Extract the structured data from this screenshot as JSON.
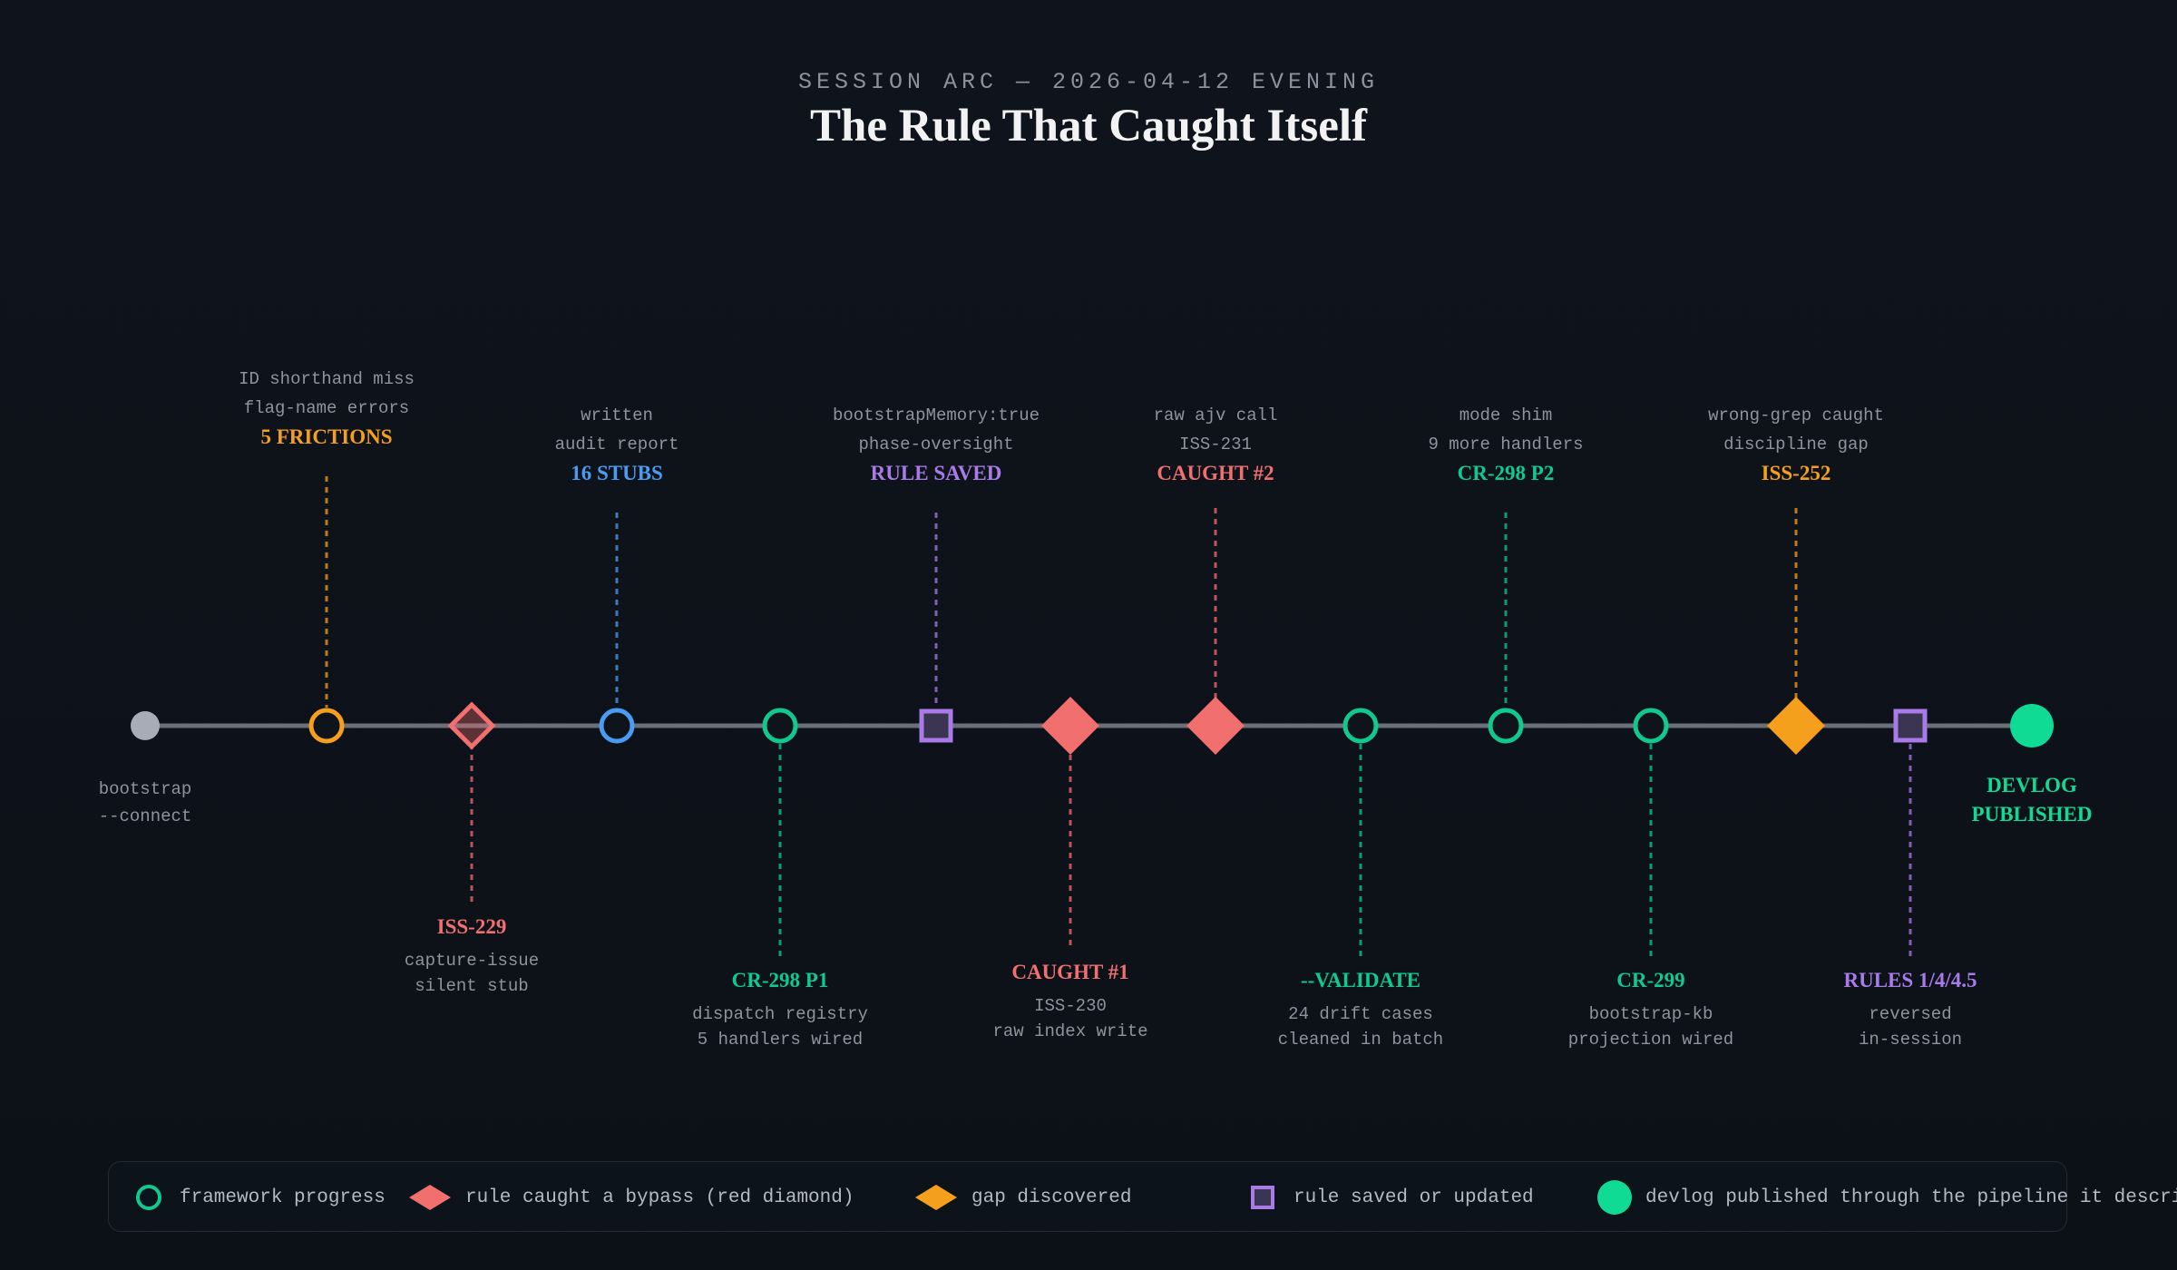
{
  "header": {
    "kicker": "SESSION ARC — 2026-04-12 EVENING",
    "title": "The Rule That Caught Itself"
  },
  "colors": {
    "axis": "#6b7078",
    "progress": "#10c98f",
    "bypass": "#f16f6f",
    "gap": "#f4a01c",
    "rule": "#a87be8",
    "stubs": "#4a9cf2",
    "start": "#a7adb6",
    "published": "#10db94"
  },
  "events": [
    {
      "id": "bootstrap",
      "shape": "start-dot",
      "color": "#a7adb6",
      "side": "below",
      "title": "",
      "lines": [
        "bootstrap",
        "--connect"
      ]
    },
    {
      "id": "frictions",
      "shape": "ring",
      "color": "#f4a01c",
      "side": "above",
      "title": "5 FRICTIONS",
      "lines": [
        "ID shorthand miss",
        "flag-name errors"
      ]
    },
    {
      "id": "iss-229",
      "shape": "diamond-outline",
      "color": "#f16f6f",
      "side": "below",
      "title": "ISS-229",
      "lines": [
        "capture-issue",
        "silent stub"
      ]
    },
    {
      "id": "stubs",
      "shape": "ring",
      "color": "#4a9cf2",
      "side": "above",
      "title": "16 STUBS",
      "lines": [
        "written",
        "audit report"
      ]
    },
    {
      "id": "cr-298-p1",
      "shape": "ring",
      "color": "#10c98f",
      "side": "below",
      "title": "CR-298 P1",
      "lines": [
        "dispatch registry",
        "5 handlers wired"
      ]
    },
    {
      "id": "rule-saved",
      "shape": "square",
      "color": "#a87be8",
      "side": "above",
      "title": "RULE SAVED",
      "lines": [
        "bootstrapMemory:true",
        "phase-oversight"
      ]
    },
    {
      "id": "caught-1",
      "shape": "diamond",
      "color": "#f16f6f",
      "side": "below",
      "title": "CAUGHT #1",
      "lines": [
        "ISS-230",
        "raw index write"
      ]
    },
    {
      "id": "caught-2",
      "shape": "diamond",
      "color": "#f16f6f",
      "side": "above",
      "title": "CAUGHT #2",
      "lines": [
        "raw ajv call",
        "ISS-231"
      ]
    },
    {
      "id": "validate",
      "shape": "ring",
      "color": "#10c98f",
      "side": "below",
      "title": "--VALIDATE",
      "lines": [
        "24 drift cases",
        "cleaned in batch"
      ]
    },
    {
      "id": "cr-298-p2",
      "shape": "ring",
      "color": "#10c98f",
      "side": "above",
      "title": "CR-298 P2",
      "lines": [
        "mode shim",
        "9 more handlers"
      ]
    },
    {
      "id": "cr-299",
      "shape": "ring",
      "color": "#10c98f",
      "side": "below",
      "title": "CR-299",
      "lines": [
        "bootstrap-kb",
        "projection wired"
      ]
    },
    {
      "id": "iss-252",
      "shape": "diamond",
      "color": "#f4a01c",
      "side": "above",
      "title": "ISS-252",
      "lines": [
        "wrong-grep caught",
        "discipline gap"
      ]
    },
    {
      "id": "rules-reversed",
      "shape": "square",
      "color": "#a87be8",
      "side": "below",
      "title": "RULES 1/4/4.5",
      "lines": [
        "reversed",
        "in-session"
      ]
    },
    {
      "id": "devlog",
      "shape": "big-dot",
      "color": "#10db94",
      "side": "below",
      "title": "",
      "title_lines": [
        "DEVLOG",
        "PUBLISHED"
      ],
      "lines": []
    }
  ],
  "legend": [
    {
      "icon": "ring",
      "color": "#10c98f",
      "label": "framework progress"
    },
    {
      "icon": "diamond",
      "color": "#f16f6f",
      "label": "rule caught a bypass (red diamond)"
    },
    {
      "icon": "diamond",
      "color": "#f4a01c",
      "label": "gap discovered"
    },
    {
      "icon": "square",
      "color": "#a87be8",
      "label": "rule saved or updated"
    },
    {
      "icon": "big-dot",
      "color": "#10db94",
      "label": "devlog published through the pipeline it describes"
    }
  ]
}
